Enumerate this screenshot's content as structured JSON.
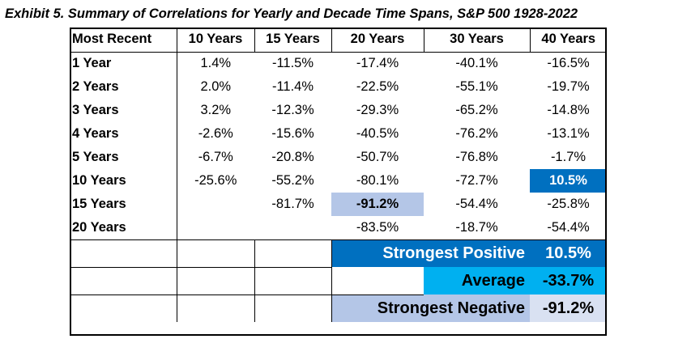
{
  "title": "Exhibit 5. Summary of Correlations for Yearly and Decade Time Spans, S&P 500 1928-2022",
  "table": {
    "headers": [
      "Most Recent",
      "10 Years",
      "15 Years",
      "20 Years",
      "30 Years",
      "40 Years"
    ],
    "rows": [
      {
        "label": "1 Year",
        "values": [
          "1.4%",
          "-11.5%",
          "-17.4%",
          "-40.1%",
          "-16.5%"
        ]
      },
      {
        "label": "2 Years",
        "values": [
          "2.0%",
          "-11.4%",
          "-22.5%",
          "-55.1%",
          "-19.7%"
        ]
      },
      {
        "label": "3 Years",
        "values": [
          "3.2%",
          "-12.3%",
          "-29.3%",
          "-65.2%",
          "-14.8%"
        ]
      },
      {
        "label": "4 Years",
        "values": [
          "-2.6%",
          "-15.6%",
          "-40.5%",
          "-76.2%",
          "-13.1%"
        ]
      },
      {
        "label": "5 Years",
        "values": [
          "-6.7%",
          "-20.8%",
          "-50.7%",
          "-76.8%",
          "-1.7%"
        ]
      },
      {
        "label": "10 Years",
        "values": [
          "-25.6%",
          "-55.2%",
          "-80.1%",
          "-72.7%",
          "10.5%"
        ]
      },
      {
        "label": "15 Years",
        "values": [
          "",
          "-81.7%",
          "-91.2%",
          "-54.4%",
          "-25.8%"
        ]
      },
      {
        "label": "20 Years",
        "values": [
          "",
          "",
          "-83.5%",
          "-18.7%",
          "-54.4%"
        ]
      }
    ]
  },
  "summary": {
    "strongest_positive_label": "Strongest Positive",
    "strongest_positive_value": "10.5%",
    "average_label": "Average",
    "average_value": "-33.7%",
    "strongest_negative_label": "Strongest Negative",
    "strongest_negative_value": "-91.2%"
  },
  "colors": {
    "positive_highlight": "#0070C0",
    "average_highlight": "#00B0F0",
    "negative_highlight": "#B4C6E7"
  }
}
